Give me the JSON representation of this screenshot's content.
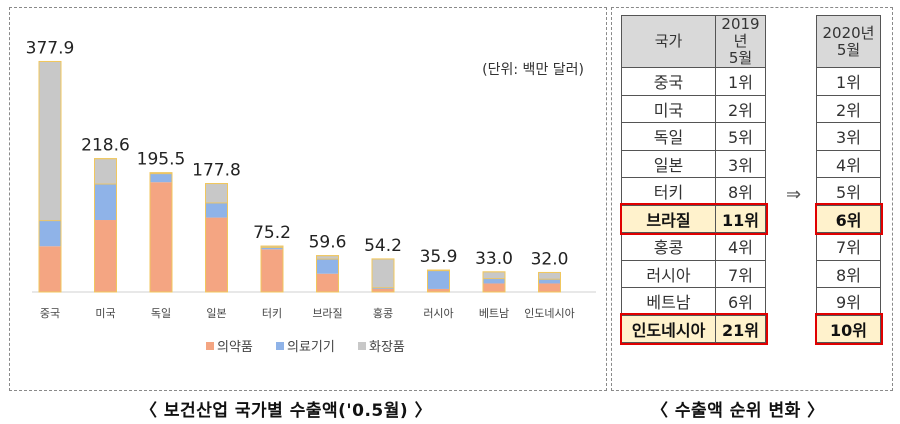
{
  "chart_data": {
    "type": "bar",
    "stacked": true,
    "categories": [
      "중국",
      "미국",
      "독일",
      "일본",
      "터키",
      "브라질",
      "홍콩",
      "러시아",
      "베트남",
      "인도네시아"
    ],
    "totals": [
      "377.9",
      "218.6",
      "195.5",
      "177.8",
      "75.2",
      "59.6",
      "54.2",
      "35.9",
      "33.0",
      "32.0"
    ],
    "series": [
      {
        "name": "의약품",
        "color": "#f4a582",
        "values": [
          75,
          118,
          180,
          122,
          70,
          30,
          5,
          5,
          14,
          14
        ]
      },
      {
        "name": "의료기기",
        "color": "#8fb3e8",
        "values": [
          42,
          59,
          14,
          24,
          3,
          24,
          2,
          30,
          8,
          7
        ]
      },
      {
        "name": "화장품",
        "color": "#c8c8c8",
        "values": [
          260.9,
          41.6,
          1.5,
          31.8,
          2.2,
          5.6,
          47.2,
          0.9,
          11.0,
          11.0
        ]
      }
    ],
    "unit_note": "(단위: 백만 달러)",
    "ylim": [
      0,
      400
    ],
    "legend_position": "bottom"
  },
  "captions": {
    "chart": "〈 보건산업 국가별 수출액('0.5월) 〉",
    "table": "〈 수출액 순위 변화 〉"
  },
  "ranking": {
    "headers": {
      "country": "국가",
      "y2019": [
        "2019년",
        "5월"
      ],
      "y2020": [
        "2020년",
        "5월"
      ]
    },
    "rows": [
      {
        "country": "중국",
        "y2019": "1위",
        "y2020": "1위",
        "highlight": false
      },
      {
        "country": "미국",
        "y2019": "2위",
        "y2020": "2위",
        "highlight": false
      },
      {
        "country": "독일",
        "y2019": "5위",
        "y2020": "3위",
        "highlight": false
      },
      {
        "country": "일본",
        "y2019": "3위",
        "y2020": "4위",
        "highlight": false
      },
      {
        "country": "터키",
        "y2019": "8위",
        "y2020": "5위",
        "highlight": false
      },
      {
        "country": "브라질",
        "y2019": "11위",
        "y2020": "6위",
        "highlight": true
      },
      {
        "country": "홍콩",
        "y2019": "4위",
        "y2020": "7위",
        "highlight": false
      },
      {
        "country": "러시아",
        "y2019": "7위",
        "y2020": "8위",
        "highlight": false
      },
      {
        "country": "베트남",
        "y2019": "6위",
        "y2020": "9위",
        "highlight": false
      },
      {
        "country": "인도네시아",
        "y2019": "21위",
        "y2020": "10위",
        "highlight": true
      }
    ],
    "arrow": "⇒"
  }
}
